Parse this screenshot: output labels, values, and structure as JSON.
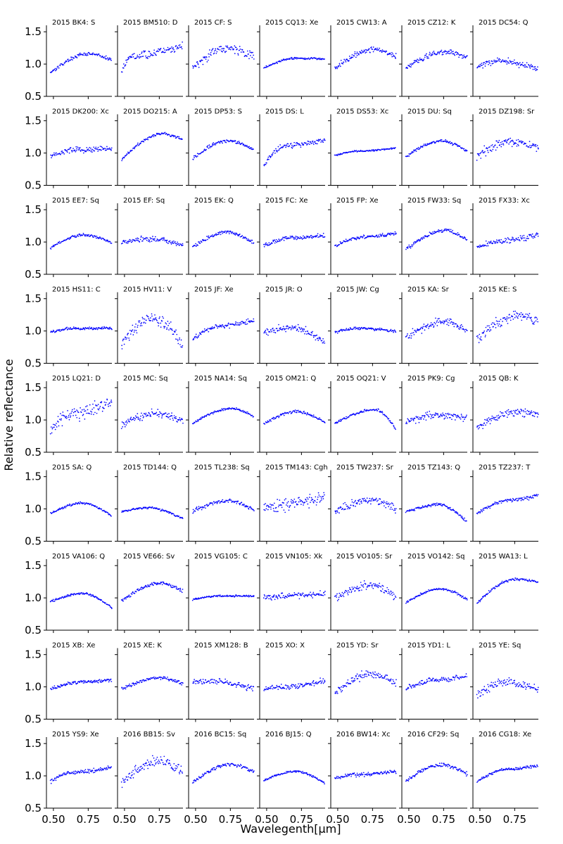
{
  "chart_data": {
    "type": "scatter",
    "figure": {
      "xlabel": "Wavelegenth[μm]",
      "ylabel": "Relative reflectance",
      "xlim": [
        0.45,
        0.92
      ],
      "ylim": [
        0.5,
        1.6
      ],
      "x_ticks": [
        0.5,
        0.75
      ],
      "x_tick_labels": [
        "0.50",
        "0.75"
      ],
      "y_ticks": [
        0.5,
        1.0,
        1.5
      ],
      "y_tick_labels": [
        "0.5",
        "1.0",
        "1.5"
      ],
      "marker_color": "#0000ff",
      "x_range": [
        0.48,
        0.92
      ]
    },
    "panels": [
      [
        "2015 BK4: S",
        0.87,
        1.16,
        0.76,
        1.06,
        0.02
      ],
      [
        "2015 BM510: D",
        0.9,
        1.12,
        0.55,
        1.28,
        0.04
      ],
      [
        "2015 CF: S",
        0.95,
        1.24,
        0.74,
        1.1,
        0.05
      ],
      [
        "2015 CQ13: Xe",
        0.94,
        1.09,
        0.72,
        1.08,
        0.01
      ],
      [
        "2015 CW13: A",
        0.93,
        1.23,
        0.76,
        1.12,
        0.03
      ],
      [
        "2015 CZ12: K",
        0.93,
        1.19,
        0.77,
        1.1,
        0.03
      ],
      [
        "2015 DC54: Q",
        0.95,
        1.05,
        0.64,
        0.92,
        0.03
      ],
      [
        "2015 DK200: Xc",
        0.95,
        1.05,
        0.7,
        1.08,
        0.03
      ],
      [
        "2015 DO215: A",
        0.9,
        1.3,
        0.78,
        1.2,
        0.015
      ],
      [
        "2015 DP53: S",
        0.91,
        1.19,
        0.74,
        1.06,
        0.02
      ],
      [
        "2015 DS: L",
        0.8,
        1.12,
        0.65,
        1.2,
        0.03
      ],
      [
        "2015 DS53: Xc",
        0.96,
        1.03,
        0.66,
        1.08,
        0.008
      ],
      [
        "2015 DU: Sq",
        0.94,
        1.19,
        0.74,
        1.03,
        0.015
      ],
      [
        "2015 DZ198: Sr",
        0.95,
        1.18,
        0.72,
        1.07,
        0.05
      ],
      [
        "2015 EE7: Sq",
        0.91,
        1.11,
        0.72,
        0.99,
        0.015
      ],
      [
        "2015 EF: Sq",
        1.0,
        1.05,
        0.72,
        0.94,
        0.03
      ],
      [
        "2015 EK: Q",
        0.93,
        1.15,
        0.74,
        0.98,
        0.02
      ],
      [
        "2015 FC: Xe",
        0.94,
        1.07,
        0.72,
        1.1,
        0.025
      ],
      [
        "2015 FP: Xe",
        0.94,
        1.08,
        0.7,
        1.13,
        0.02
      ],
      [
        "2015 FW33: Sq",
        0.89,
        1.18,
        0.77,
        1.03,
        0.02
      ],
      [
        "2015 FX33: Xc",
        0.91,
        1.01,
        0.64,
        1.11,
        0.03
      ],
      [
        "2015 HS11: C",
        0.98,
        1.04,
        0.66,
        1.04,
        0.015
      ],
      [
        "2015 HV11: V",
        0.8,
        1.2,
        0.72,
        0.75,
        0.07
      ],
      [
        "2015 JF: Xe",
        0.89,
        1.08,
        0.7,
        1.17,
        0.03
      ],
      [
        "2015 JR: O",
        0.97,
        1.05,
        0.7,
        0.82,
        0.04
      ],
      [
        "2015 JW: Cg",
        0.98,
        1.04,
        0.66,
        1.0,
        0.015
      ],
      [
        "2015 KA: Sr",
        0.9,
        1.14,
        0.76,
        0.98,
        0.04
      ],
      [
        "2015 KE: S",
        0.85,
        1.24,
        0.76,
        1.16,
        0.06
      ],
      [
        "2015 LQ21: D",
        0.85,
        1.1,
        0.66,
        1.3,
        0.08
      ],
      [
        "2015 MC: Sq",
        0.92,
        1.1,
        0.74,
        0.98,
        0.04
      ],
      [
        "2015 NA14: Sq",
        0.95,
        1.18,
        0.77,
        1.05,
        0.012
      ],
      [
        "2015 OM21: Q",
        0.94,
        1.13,
        0.72,
        0.96,
        0.015
      ],
      [
        "2015 OQ21: V",
        0.95,
        1.16,
        0.78,
        0.85,
        0.012
      ],
      [
        "2015 PK9: Cg",
        0.97,
        1.08,
        0.72,
        1.03,
        0.04
      ],
      [
        "2015 QB: K",
        0.88,
        1.12,
        0.76,
        1.1,
        0.04
      ],
      [
        "2015 SA: Q",
        0.93,
        1.09,
        0.72,
        0.89,
        0.012
      ],
      [
        "2015 TD144: Q",
        0.96,
        1.02,
        0.68,
        0.85,
        0.012
      ],
      [
        "2015 TL238: Sq",
        0.96,
        1.13,
        0.74,
        0.98,
        0.02
      ],
      [
        "2015 TM143: Cgh",
        1.02,
        1.08,
        0.7,
        1.18,
        0.07
      ],
      [
        "2015 TW237: Sr",
        0.95,
        1.14,
        0.76,
        1.0,
        0.04
      ],
      [
        "2015 TZ143: Q",
        0.95,
        1.07,
        0.72,
        0.8,
        0.015
      ],
      [
        "2015 TZ237: T",
        0.92,
        1.14,
        0.72,
        1.21,
        0.02
      ],
      [
        "2015 VA106: Q",
        0.94,
        1.07,
        0.72,
        0.85,
        0.012
      ],
      [
        "2015 VE66: Sv",
        0.95,
        1.23,
        0.76,
        1.1,
        0.02
      ],
      [
        "2015 VG105: C",
        0.97,
        1.03,
        0.66,
        1.03,
        0.01
      ],
      [
        "2015 VN105: Xk",
        1.0,
        1.04,
        0.7,
        1.06,
        0.03
      ],
      [
        "2015 VO105: Sr",
        0.99,
        1.2,
        0.75,
        1.0,
        0.04
      ],
      [
        "2015 VO142: Sq",
        0.93,
        1.14,
        0.74,
        0.98,
        0.012
      ],
      [
        "2015 WA13: L",
        0.92,
        1.29,
        0.76,
        1.25,
        0.015
      ],
      [
        "2015 XB: Xe",
        0.96,
        1.07,
        0.68,
        1.11,
        0.02
      ],
      [
        "2015 XE: K",
        0.96,
        1.14,
        0.76,
        1.05,
        0.02
      ],
      [
        "2015 XM128: B",
        1.07,
        1.09,
        0.62,
        0.97,
        0.03
      ],
      [
        "2015 XO: X",
        0.97,
        1.0,
        0.64,
        1.1,
        0.03
      ],
      [
        "2015 YD: Sr",
        0.9,
        1.2,
        0.75,
        1.04,
        0.04
      ],
      [
        "2015 YD1: L",
        0.97,
        1.12,
        0.74,
        1.17,
        0.03
      ],
      [
        "2015 YE: Sq",
        0.87,
        1.07,
        0.7,
        0.95,
        0.05
      ],
      [
        "2015 YS9: Xe",
        0.91,
        1.05,
        0.64,
        1.13,
        0.02
      ],
      [
        "2016 BB15: Sv",
        0.87,
        1.24,
        0.76,
        1.06,
        0.06
      ],
      [
        "2016 BC15: Sq",
        0.89,
        1.18,
        0.76,
        1.06,
        0.02
      ],
      [
        "2016 BJ15: Q",
        0.93,
        1.07,
        0.72,
        0.88,
        0.012
      ],
      [
        "2016 BW14: Xc",
        0.96,
        1.02,
        0.66,
        1.07,
        0.02
      ],
      [
        "2016 CF29: Sq",
        0.92,
        1.17,
        0.74,
        1.03,
        0.02
      ],
      [
        "2016 CG18: Xe",
        0.91,
        1.1,
        0.7,
        1.16,
        0.015
      ]
    ],
    "panel_fields": [
      "title",
      "y_start",
      "y_peak",
      "x_peak",
      "y_end",
      "scatter"
    ]
  }
}
